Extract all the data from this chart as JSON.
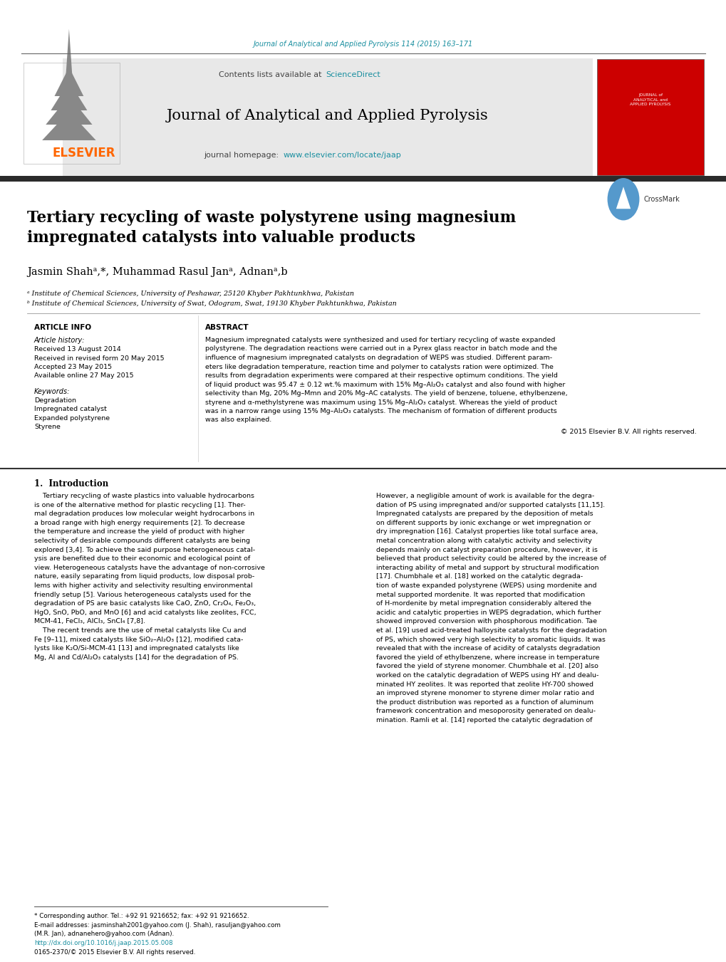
{
  "page_width": 10.2,
  "page_height": 13.51,
  "bg_color": "#ffffff",
  "top_journal_ref": "Journal of Analytical and Applied Pyrolysis 114 (2015) 163–171",
  "top_journal_ref_color": "#1a8fa0",
  "header_bg": "#e8e8e8",
  "header_journal_name": "Journal of Analytical and Applied Pyrolysis",
  "header_contents_text": "Contents lists available at ",
  "header_sciencedirect": "ScienceDirect",
  "header_homepage_text": "journal homepage: ",
  "header_homepage_url": "www.elsevier.com/locate/jaap",
  "elsevier_color": "#ff6600",
  "link_color": "#1a8fa0",
  "title": "Tertiary recycling of waste polystyrene using magnesium\nimpregnated catalysts into valuable products",
  "authors_full": "Jasmin Shahᵃ,*, Muhammad Rasul Janᵃ, Adnanᵃ,b",
  "affil_a": "ᵃ Institute of Chemical Sciences, University of Peshawar, 25120 Khyber Pakhtunkhwa, Pakistan",
  "affil_b": "ᵇ Institute of Chemical Sciences, University of Swat, Odogram, Swat, 19130 Khyber Pakhtunkhwa, Pakistan",
  "section_article_info": "ARTICLE INFO",
  "section_abstract": "ABSTRACT",
  "article_history_label": "Article history:",
  "received_label": "Received 13 August 2014",
  "revised_label": "Received in revised form 20 May 2015",
  "accepted_label": "Accepted 23 May 2015",
  "online_label": "Available online 27 May 2015",
  "keywords_label": "Keywords:",
  "kw1": "Degradation",
  "kw2": "Impregnated catalyst",
  "kw3": "Expanded polystyrene",
  "kw4": "Styrene",
  "copyright_text": "© 2015 Elsevier B.V. All rights reserved.",
  "intro_heading": "1.  Introduction",
  "footnote_star": "* Corresponding author. Tel.: +92 91 9216652; fax: +92 91 9216652.",
  "footnote_email1": "E-mail addresses: jasminshah2001@yahoo.com (J. Shah), rasuljan@yahoo.com",
  "footnote_email2": "(M.R. Jan), adnanehero@yahoo.com (Adnan).",
  "footnote_doi": "http://dx.doi.org/10.1016/j.jaap.2015.05.008",
  "footnote_issn": "0165-2370/© 2015 Elsevier B.V. All rights reserved.",
  "dark_bar_color": "#2b2b2b",
  "abstract_lines": [
    "Magnesium impregnated catalysts were synthesized and used for tertiary recycling of waste expanded",
    "polystyrene. The degradation reactions were carried out in a Pyrex glass reactor in batch mode and the",
    "influence of magnesium impregnated catalysts on degradation of WEPS was studied. Different param-",
    "eters like degradation temperature, reaction time and polymer to catalysts ration were optimized. The",
    "results from degradation experiments were compared at their respective optimum conditions. The yield",
    "of liquid product was 95.47 ± 0.12 wt.% maximum with 15% Mg–Al₂O₃ catalyst and also found with higher",
    "selectivity than Mg, 20% Mg–Mmn and 20% Mg–AC catalysts. The yield of benzene, toluene, ethylbenzene,",
    "styrene and α-methylstyrene was maximum using 15% Mg–Al₂O₃ catalyst. Whereas the yield of product",
    "was in a narrow range using 15% Mg–Al₂O₃ catalysts. The mechanism of formation of different products",
    "was also explained."
  ],
  "intro_col1_lines": [
    "    Tertiary recycling of waste plastics into valuable hydrocarbons",
    "is one of the alternative method for plastic recycling [1]. Ther-",
    "mal degradation produces low molecular weight hydrocarbons in",
    "a broad range with high energy requirements [2]. To decrease",
    "the temperature and increase the yield of product with higher",
    "selectivity of desirable compounds different catalysts are being",
    "explored [3,4]. To achieve the said purpose heterogeneous catal-",
    "ysis are benefited due to their economic and ecological point of",
    "view. Heterogeneous catalysts have the advantage of non-corrosive",
    "nature, easily separating from liquid products, low disposal prob-",
    "lems with higher activity and selectivity resulting environmental",
    "friendly setup [5]. Various heterogeneous catalysts used for the",
    "degradation of PS are basic catalysts like CaO, ZnO, Cr₂O₄, Fe₂O₃,",
    "HgO, SnO, PbO, and MnO [6] and acid catalysts like zeolites, FCC,",
    "MCM-41, FeCl₃, AlCl₃, SnCl₄ [7,8].",
    "    The recent trends are the use of metal catalysts like Cu and",
    "Fe [9–11], mixed catalysts like SiO₂–Al₂O₃ [12], modified cata-",
    "lysts like K₂O/Si-MCM-41 [13] and impregnated catalysts like",
    "Mg, Al and Cd/Al₂O₃ catalysts [14] for the degradation of PS."
  ],
  "intro_col2_lines": [
    "However, a negligible amount of work is available for the degra-",
    "dation of PS using impregnated and/or supported catalysts [11,15].",
    "Impregnated catalysts are prepared by the deposition of metals",
    "on different supports by ionic exchange or wet impregnation or",
    "dry impregnation [16]. Catalyst properties like total surface area,",
    "metal concentration along with catalytic activity and selectivity",
    "depends mainly on catalyst preparation procedure, however, it is",
    "believed that product selectivity could be altered by the increase of",
    "interacting ability of metal and support by structural modification",
    "[17]. Chumbhale et al. [18] worked on the catalytic degrada-",
    "tion of waste expanded polystyrene (WEPS) using mordenite and",
    "metal supported mordenite. It was reported that modification",
    "of H-mordenite by metal impregnation considerably altered the",
    "acidic and catalytic properties in WEPS degradation, which further",
    "showed improved conversion with phosphorous modification. Tae",
    "et al. [19] used acid-treated halloysite catalysts for the degradation",
    "of PS, which showed very high selectivity to aromatic liquids. It was",
    "revealed that with the increase of acidity of catalysts degradation",
    "favored the yield of ethylbenzene, where increase in temperature",
    "favored the yield of styrene monomer. Chumbhale et al. [20] also",
    "worked on the catalytic degradation of WEPS using HY and dealu-",
    "minated HY zeolites. It was reported that zeolite HY-700 showed",
    "an improved styrene monomer to styrene dimer molar ratio and",
    "the product distribution was reported as a function of aluminum",
    "framework concentration and mesoporosity generated on dealu-",
    "mination. Ramli et al. [14] reported the catalytic degradation of"
  ]
}
